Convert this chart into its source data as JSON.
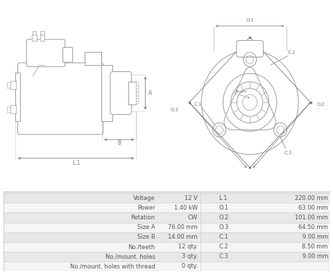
{
  "bg_color": "#ffffff",
  "table_bg_even": "#e8e8e8",
  "table_bg_odd": "#f5f5f5",
  "table_border": "#cccccc",
  "left_col": [
    "Voltage",
    "Power",
    "Rotation",
    "Size A",
    "Size B",
    "No./teeth",
    "No./mount. holes",
    "No./mount. holes with thread"
  ],
  "mid_col": [
    "12 V",
    "1.40 kW",
    "CW",
    "76.00 mm",
    "14.00 mm",
    "12 qty.",
    "3 qty.",
    "0 qty."
  ],
  "right_labels": [
    "L.1",
    "O.1",
    "O.2",
    "O.3",
    "C.1",
    "C.2",
    "C.3"
  ],
  "right_values": [
    "220.00 mm",
    "63.00 mm",
    "101.00 mm",
    "64.50 mm",
    "9.00 mm",
    "8.50 mm",
    "9.00 mm"
  ],
  "lc": "#999999",
  "tc": "#555555",
  "lbc": "#777777"
}
